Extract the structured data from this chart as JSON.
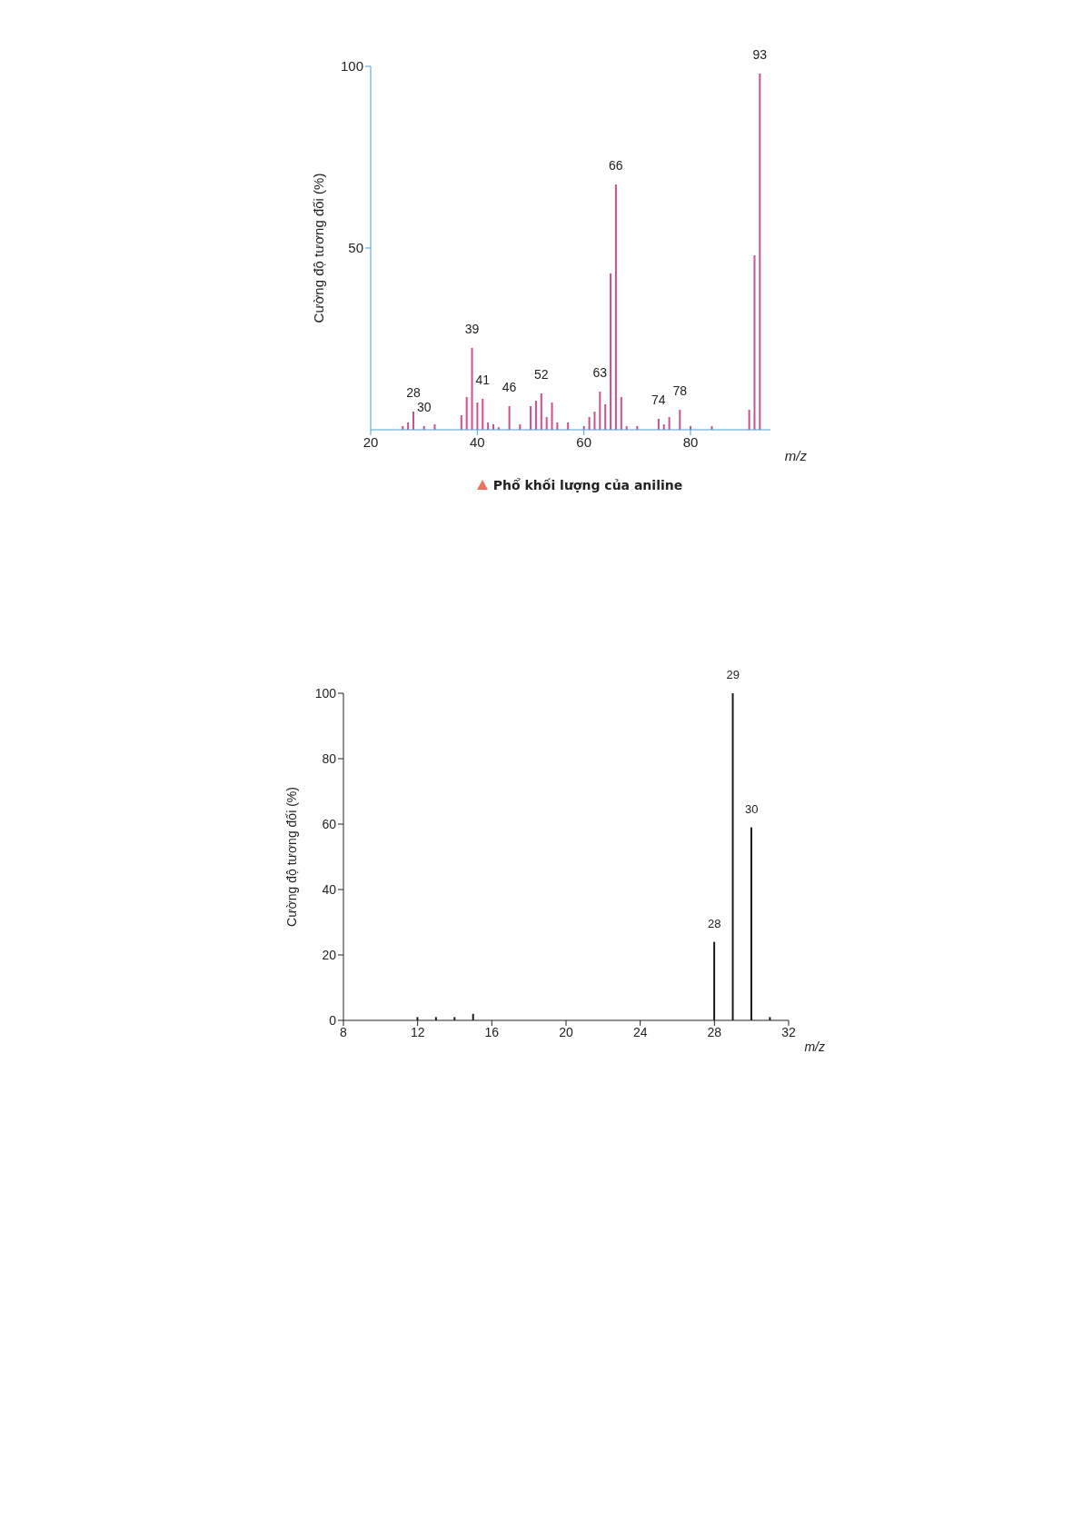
{
  "chart_data": [
    {
      "type": "bar",
      "title": "Phổ khối lượng của aniline",
      "xlabel": "m/z",
      "ylabel": "Cường độ tương đối (%)",
      "x": [
        26,
        27,
        28,
        30,
        32,
        37,
        38,
        39,
        40,
        41,
        42,
        43,
        44,
        46,
        48,
        50,
        51,
        52,
        53,
        54,
        55,
        57,
        60,
        61,
        62,
        63,
        64,
        65,
        66,
        67,
        68,
        70,
        74,
        75,
        76,
        78,
        80,
        84,
        91,
        92,
        93
      ],
      "values": [
        1,
        2,
        5,
        1,
        1.5,
        4,
        9,
        22.5,
        7.5,
        8.5,
        2,
        1.5,
        0.7,
        6.5,
        1.5,
        6.5,
        8,
        10,
        3.5,
        7.5,
        2,
        2,
        1,
        3.5,
        5,
        10.5,
        7,
        43,
        67.5,
        9,
        1,
        1,
        3,
        1.5,
        3.5,
        5.5,
        1,
        1,
        5.5,
        48,
        98
      ],
      "annotations": [
        {
          "text": "28",
          "x": 28,
          "y": 5
        },
        {
          "text": "30",
          "x": 30,
          "y": 1
        },
        {
          "text": "39",
          "x": 39,
          "y": 22.5
        },
        {
          "text": "41",
          "x": 41,
          "y": 8.5
        },
        {
          "text": "46",
          "x": 46,
          "y": 6.5
        },
        {
          "text": "52",
          "x": 52,
          "y": 10
        },
        {
          "text": "63",
          "x": 63,
          "y": 10.5
        },
        {
          "text": "66",
          "x": 66,
          "y": 67.5
        },
        {
          "text": "74",
          "x": 74,
          "y": 3
        },
        {
          "text": "78",
          "x": 78,
          "y": 5.5
        },
        {
          "text": "93",
          "x": 93,
          "y": 98
        }
      ],
      "color": "#cc4f8f",
      "xlim": [
        20,
        95
      ],
      "ylim": [
        0,
        100
      ],
      "xticks": [
        20,
        40,
        60,
        80
      ],
      "yticks": [
        50,
        100
      ]
    },
    {
      "type": "bar",
      "xlabel": "m/z",
      "ylabel": "Cường độ tương đối (%)",
      "x": [
        12,
        13,
        14,
        15,
        28,
        29,
        30,
        31
      ],
      "values": [
        1,
        1,
        1,
        2,
        24,
        100,
        59,
        1
      ],
      "annotations": [
        {
          "text": "28",
          "x": 28,
          "y": 24
        },
        {
          "text": "29",
          "x": 29,
          "y": 100
        },
        {
          "text": "30",
          "x": 30,
          "y": 59
        }
      ],
      "color": "#1a1a1a",
      "xlim": [
        8,
        32
      ],
      "ylim": [
        0,
        100
      ],
      "xticks": [
        8,
        12,
        16,
        20,
        24,
        28,
        32
      ],
      "yticks": [
        0,
        20,
        40,
        60,
        80,
        100
      ]
    }
  ]
}
